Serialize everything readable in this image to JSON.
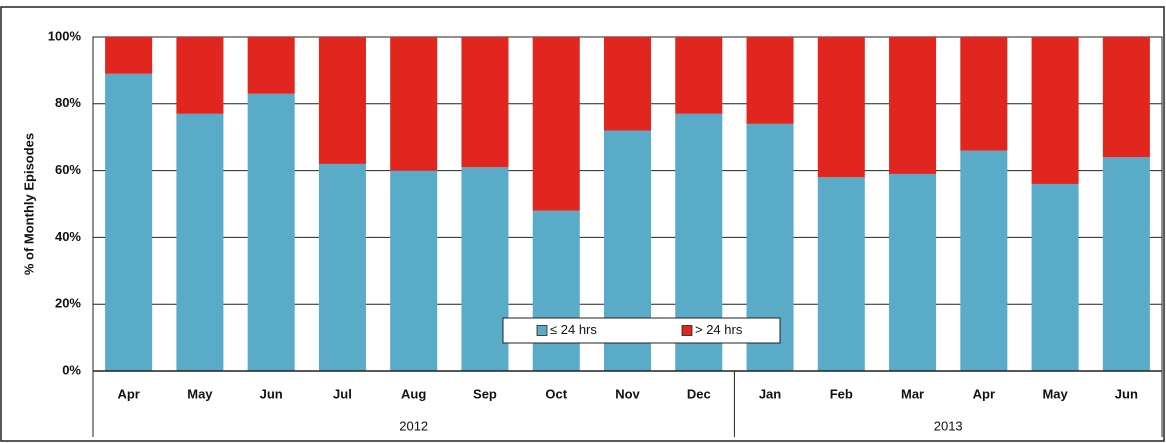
{
  "chart_data": {
    "type": "stacked_bar",
    "y_label": "% of Monthly Episodes",
    "groups": [
      {
        "label": "2012",
        "categories": [
          "Apr",
          "May",
          "Jun",
          "Jul",
          "Aug",
          "Sep",
          "Oct",
          "Nov",
          "Dec"
        ]
      },
      {
        "label": "2013",
        "categories": [
          "Jan",
          "Feb",
          "Mar",
          "Apr",
          "May",
          "Jun"
        ]
      }
    ],
    "series": [
      {
        "name": "≤ 24 hrs",
        "color": "#5aabc8",
        "values": [
          89,
          77,
          83,
          62,
          60,
          61,
          48,
          72,
          77,
          74,
          58,
          59,
          66,
          56,
          64
        ]
      },
      {
        "name": "> 24 hrs",
        "color": "#e0261e",
        "values": [
          11,
          23,
          17,
          38,
          40,
          39,
          52,
          28,
          23,
          26,
          42,
          41,
          34,
          44,
          36
        ]
      }
    ],
    "ylim": [
      0,
      100
    ],
    "yticks": [
      {
        "value": 0,
        "label": "0%"
      },
      {
        "value": 20,
        "label": "20%"
      },
      {
        "value": 40,
        "label": "40%"
      },
      {
        "value": 60,
        "label": "60%"
      },
      {
        "value": 80,
        "label": "80%"
      },
      {
        "value": 100,
        "label": "100%"
      }
    ],
    "grid": true
  }
}
